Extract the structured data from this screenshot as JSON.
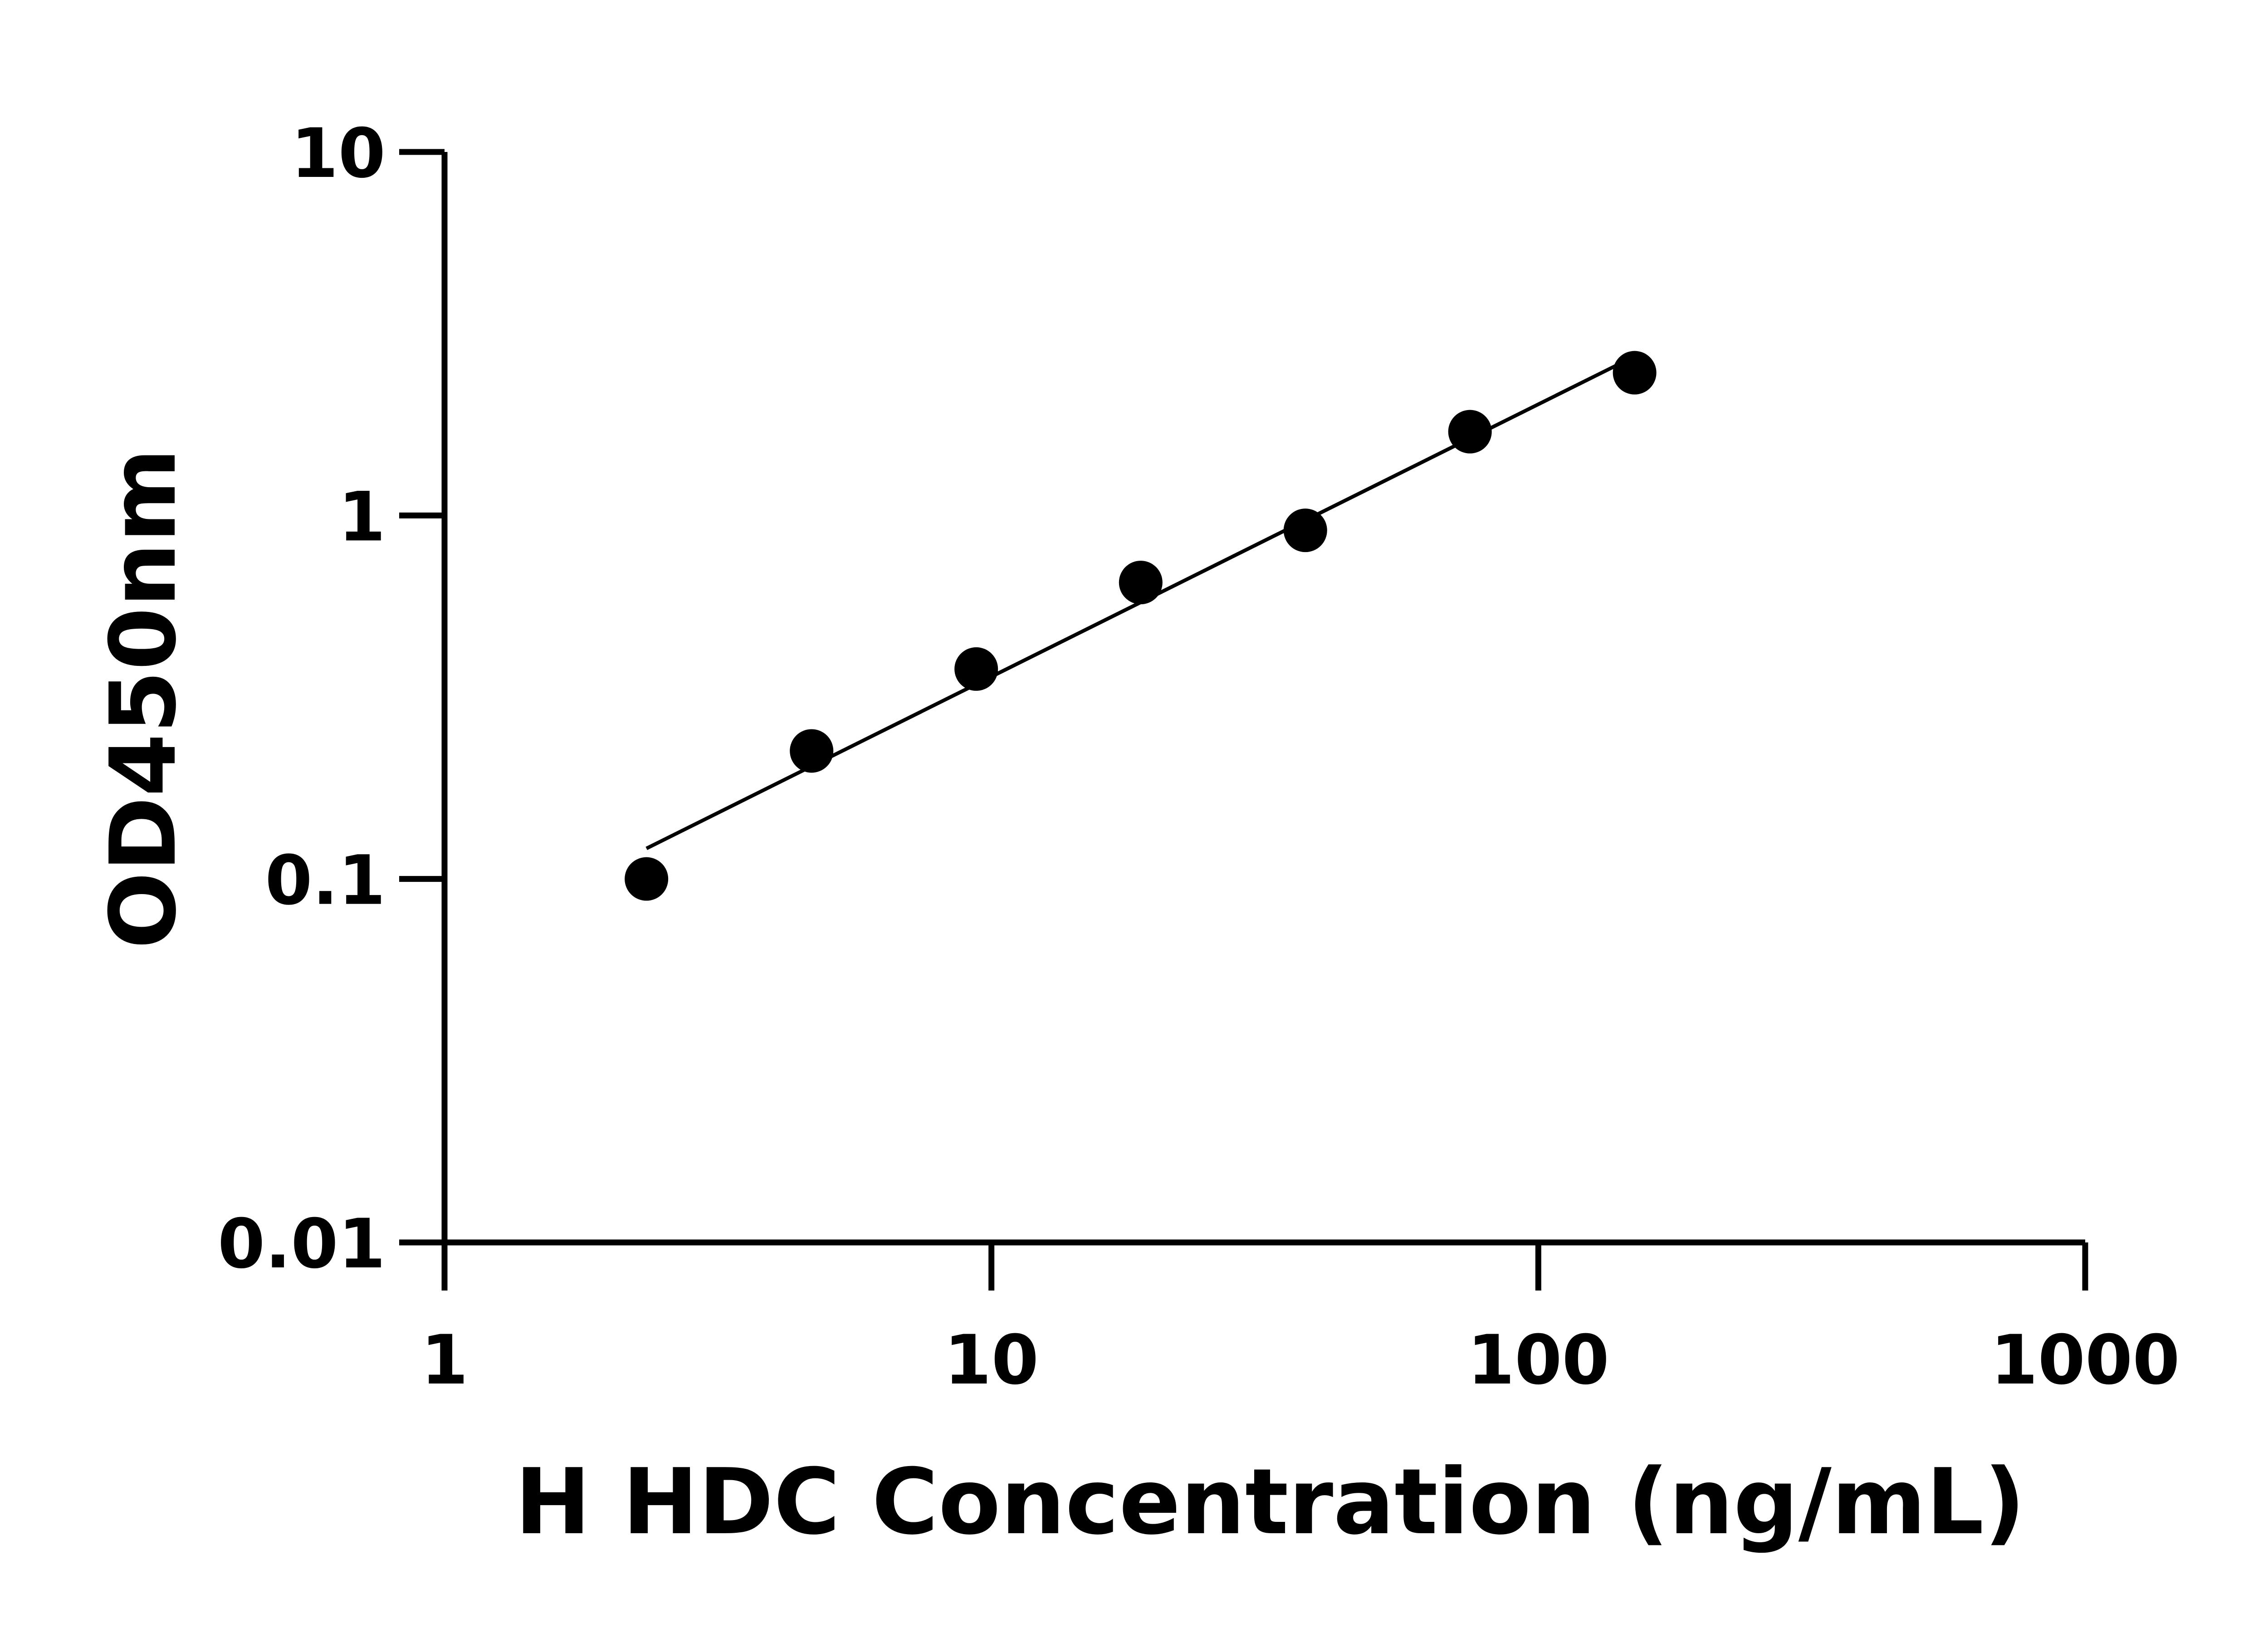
{
  "chart_data": {
    "type": "scatter",
    "title": "",
    "xlabel": "H HDC Concentration (ng/mL)",
    "ylabel": "OD450nm",
    "xscale": "log",
    "yscale": "log",
    "xlim": [
      1,
      1000
    ],
    "ylim": [
      0.01,
      10
    ],
    "xticks": [
      "1",
      "10",
      "100",
      "1000"
    ],
    "yticks": [
      "0.01",
      "0.1",
      "1",
      "10"
    ],
    "grid": false,
    "legend": "none",
    "series": [
      {
        "x": [
          2.34,
          4.69,
          9.38,
          18.75,
          37.5,
          75,
          150
        ],
        "y": [
          0.1,
          0.225,
          0.378,
          0.654,
          0.91,
          1.7,
          2.47
        ],
        "marker": "filled-circle",
        "fit_line": true,
        "color": "#000000"
      }
    ]
  }
}
